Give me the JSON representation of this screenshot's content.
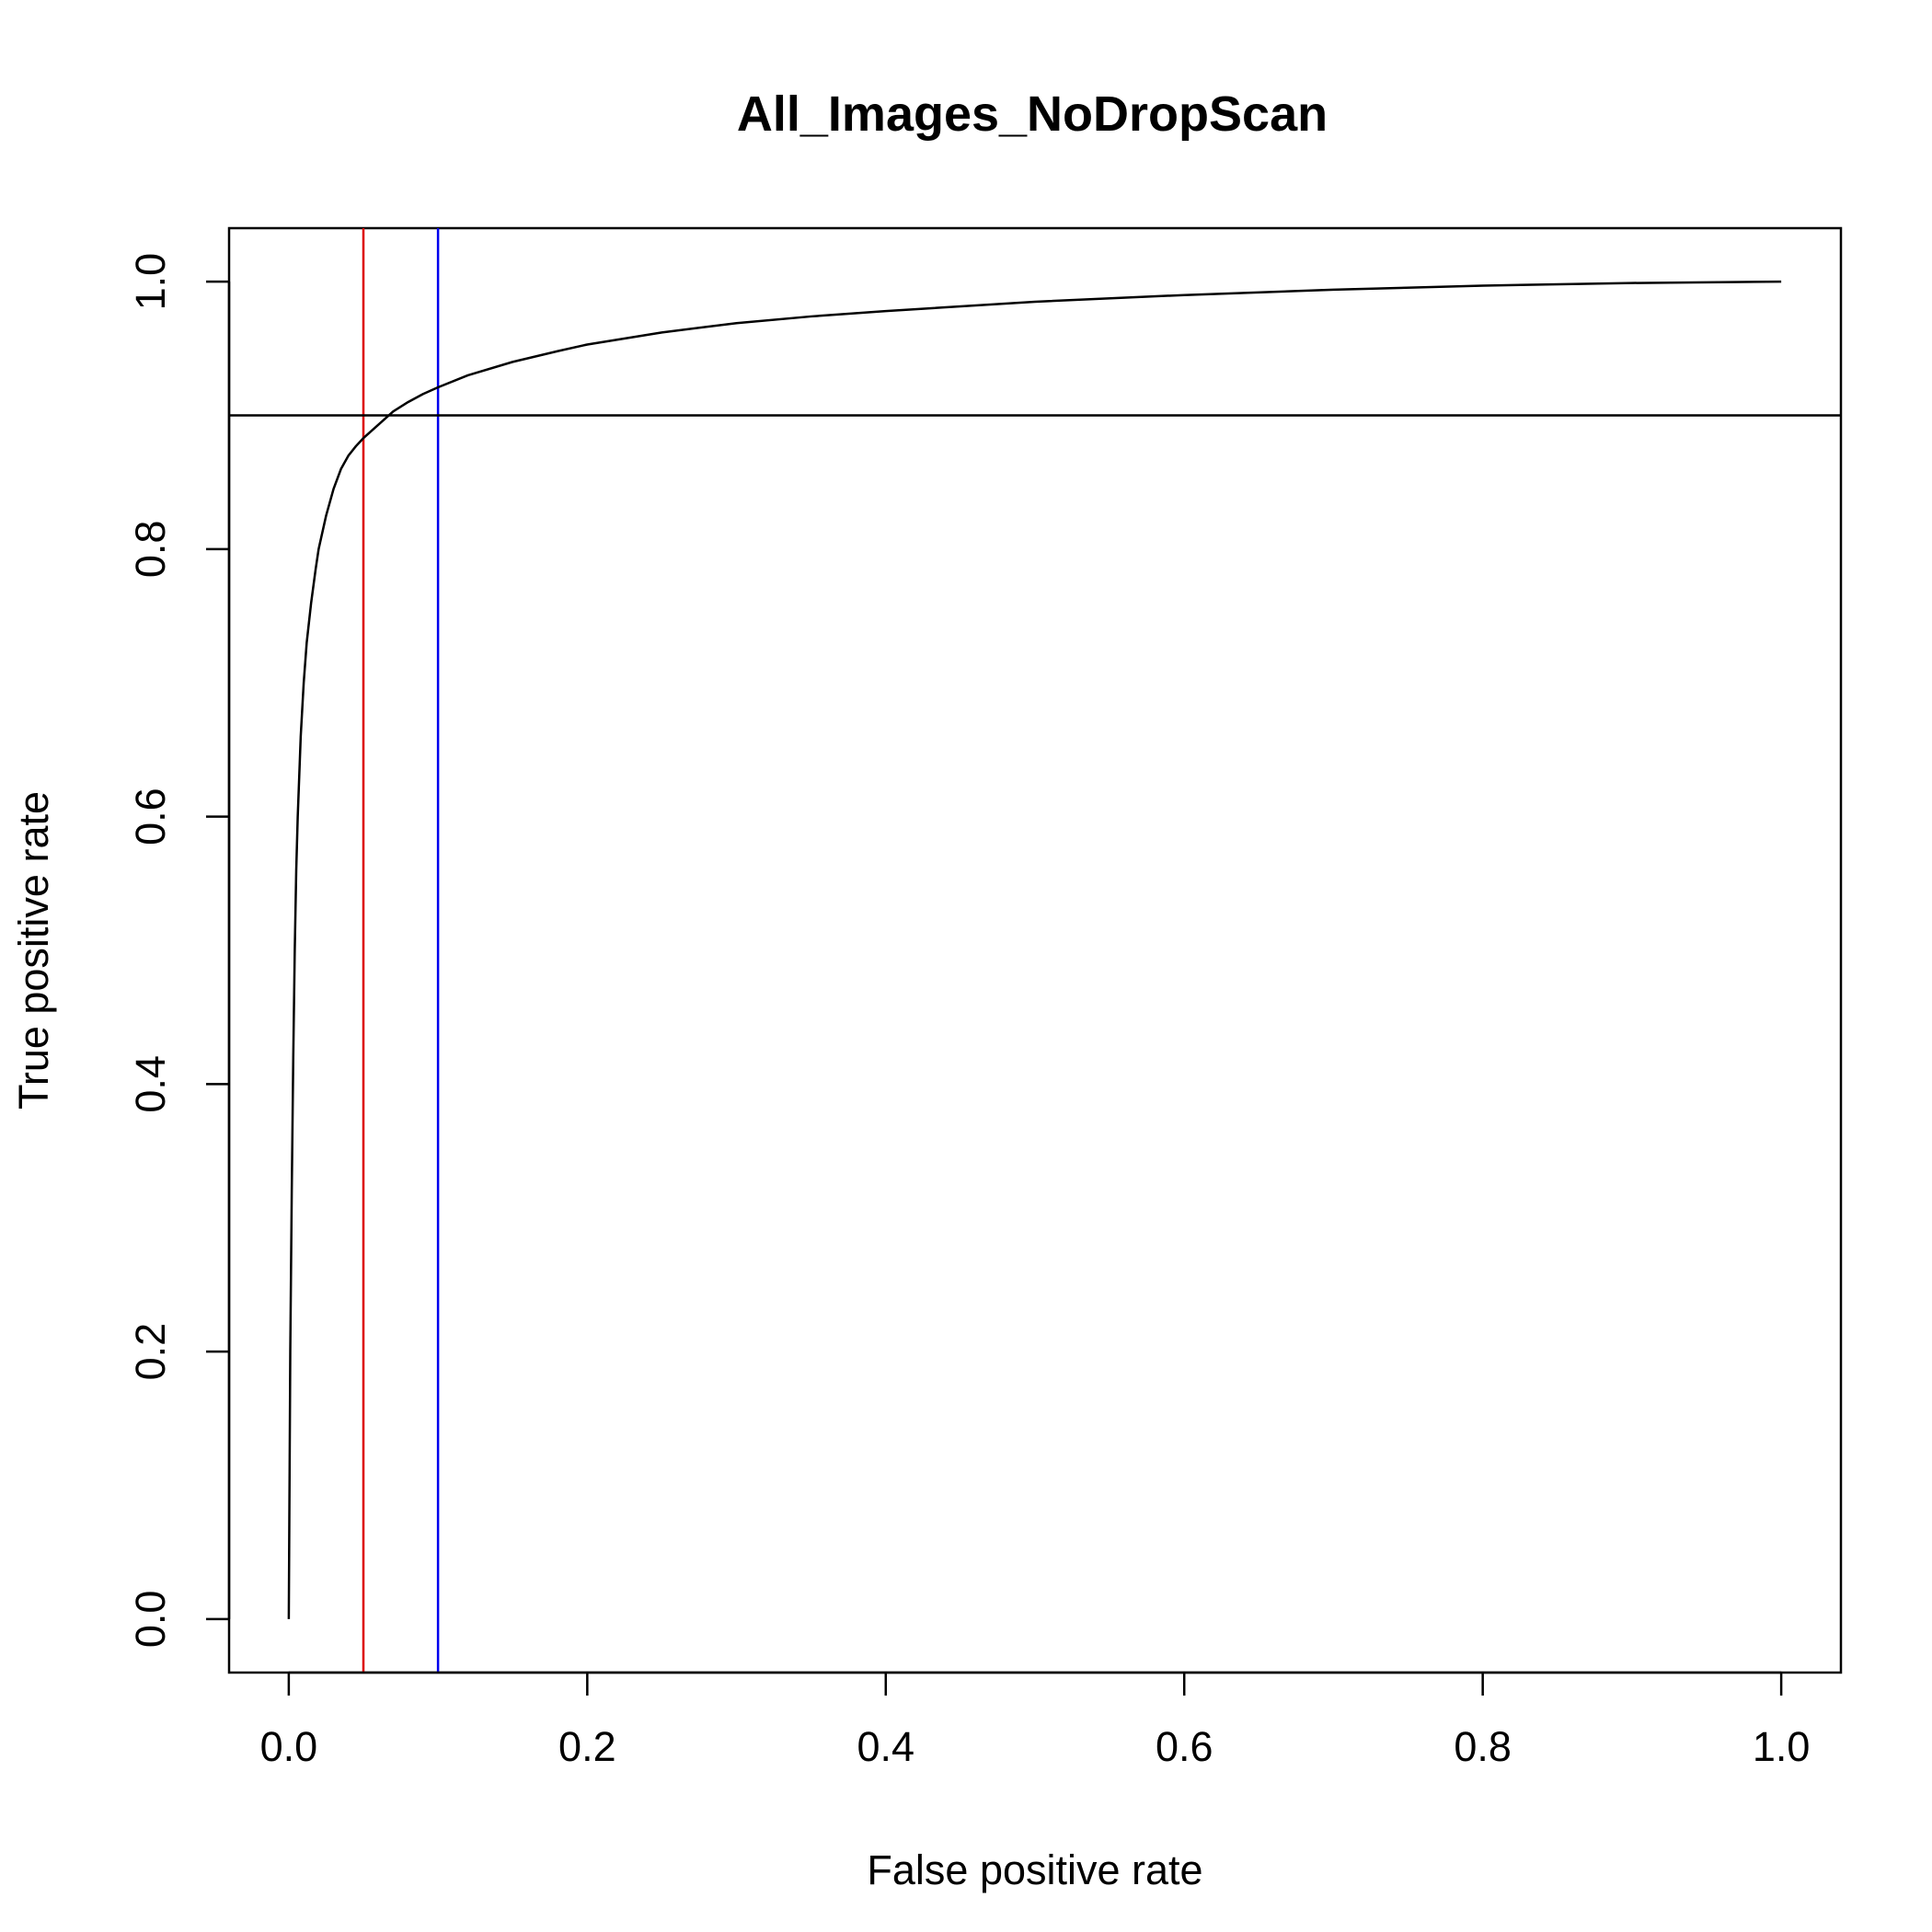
{
  "chart_data": {
    "type": "line",
    "title": "All_Images_NoDropScan",
    "xlabel": "False positive rate",
    "ylabel": "True positive rate",
    "xlim": [
      -0.04,
      1.04
    ],
    "ylim": [
      -0.04,
      1.04
    ],
    "x_ticks": [
      0.0,
      0.2,
      0.4,
      0.6,
      0.8,
      1.0
    ],
    "x_tick_labels": [
      "0.0",
      "0.2",
      "0.4",
      "0.6",
      "0.8",
      "1.0"
    ],
    "y_ticks": [
      0.0,
      0.2,
      0.4,
      0.6,
      0.8,
      1.0
    ],
    "y_tick_labels": [
      "0.0",
      "0.2",
      "0.4",
      "0.6",
      "0.8",
      "1.0"
    ],
    "grid": false,
    "series": [
      {
        "color": "#000000",
        "x": [
          0.0,
          0.001,
          0.002,
          0.003,
          0.004,
          0.005,
          0.006,
          0.008,
          0.01,
          0.012,
          0.015,
          0.018,
          0.02,
          0.025,
          0.03,
          0.035,
          0.04,
          0.045,
          0.05,
          0.055,
          0.06,
          0.065,
          0.07,
          0.08,
          0.09,
          0.1,
          0.12,
          0.15,
          0.18,
          0.2,
          0.25,
          0.3,
          0.35,
          0.4,
          0.5,
          0.6,
          0.7,
          0.8,
          0.9,
          1.0
        ],
        "y": [
          0.0,
          0.2,
          0.32,
          0.42,
          0.5,
          0.56,
          0.6,
          0.66,
          0.7,
          0.73,
          0.76,
          0.785,
          0.8,
          0.825,
          0.845,
          0.86,
          0.87,
          0.877,
          0.883,
          0.888,
          0.893,
          0.898,
          0.903,
          0.91,
          0.916,
          0.921,
          0.93,
          0.94,
          0.948,
          0.953,
          0.962,
          0.969,
          0.974,
          0.978,
          0.985,
          0.99,
          0.994,
          0.997,
          0.999,
          1.0
        ]
      }
    ],
    "reference_lines": [
      {
        "orientation": "vertical",
        "value": 0.05,
        "color": "#dd0000"
      },
      {
        "orientation": "vertical",
        "value": 0.1,
        "color": "#0000ee"
      },
      {
        "orientation": "horizontal",
        "value": 0.9,
        "color": "#000000"
      }
    ]
  }
}
